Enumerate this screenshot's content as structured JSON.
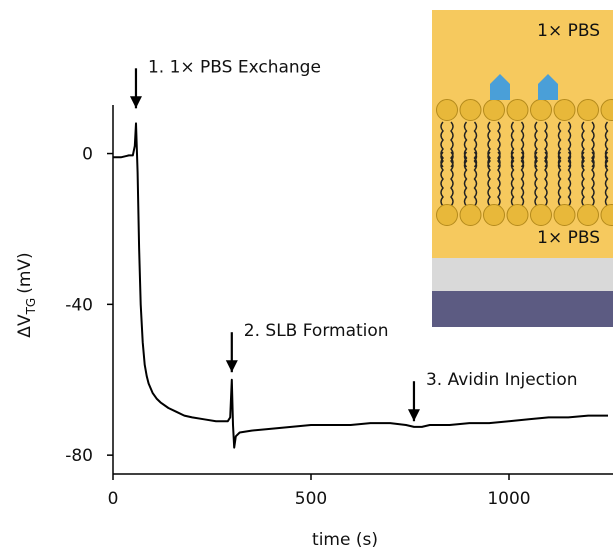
{
  "chart_data": {
    "type": "line",
    "ylabel": {
      "main": "ΔV",
      "sub": "TG",
      "unit": "(mV)"
    },
    "xlabel": "time (s)",
    "x": [
      0,
      20,
      40,
      50,
      55,
      58,
      62,
      66,
      70,
      75,
      80,
      85,
      90,
      100,
      110,
      120,
      140,
      160,
      180,
      200,
      230,
      260,
      290,
      296,
      300,
      303,
      306,
      310,
      320,
      350,
      400,
      450,
      500,
      550,
      600,
      650,
      700,
      740,
      760,
      780,
      800,
      850,
      900,
      950,
      1000,
      1050,
      1100,
      1150,
      1200,
      1250
    ],
    "series": [
      {
        "color": "#000000",
        "values": [
          -1,
          -1,
          -0.5,
          -0.5,
          2,
          8,
          -5,
          -25,
          -40,
          -50,
          -56,
          -59,
          -61,
          -63.5,
          -65,
          -66,
          -67.5,
          -68.5,
          -69.5,
          -70,
          -70.5,
          -71,
          -71,
          -70,
          -60,
          -72,
          -78,
          -75,
          -74,
          -73.5,
          -73,
          -72.5,
          -72,
          -72,
          -72,
          -71.5,
          -71.5,
          -72,
          -72.5,
          -72.5,
          -72,
          -72,
          -71.5,
          -71.5,
          -71,
          -70.5,
          -70,
          -70,
          -69.5,
          -69.5
        ]
      }
    ],
    "xlim": [
      0,
      1250
    ],
    "xticks": [
      0,
      500,
      1000
    ],
    "ylim": [
      -85,
      15
    ],
    "yticks": [
      -80,
      -40,
      0
    ],
    "grid": false,
    "annotations": [
      {
        "text": "1. 1× PBS Exchange",
        "x": 58,
        "y": 12
      },
      {
        "text": "2. SLB Formation",
        "x": 300,
        "y": -58
      },
      {
        "text": "3. Avidin Injection",
        "x": 760,
        "y": -71
      }
    ],
    "inset": {
      "labels": [
        "1× PBS",
        "1× PBS"
      ]
    }
  }
}
